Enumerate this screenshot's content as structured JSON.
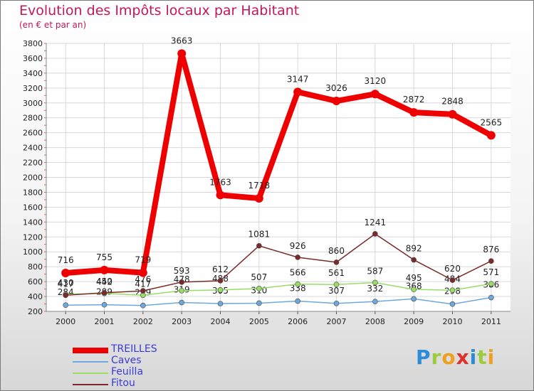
{
  "title": "Evolution des Impôts locaux par Habitant",
  "subtitle": "(en € et par an)",
  "logo_text": "Proxiti",
  "chart_data": {
    "type": "line",
    "title": "Evolution des Impôts locaux par Habitant",
    "subtitle": "(en € et par an)",
    "xlabel": "",
    "ylabel": "",
    "categories": [
      "2000",
      "2001",
      "2002",
      "2003",
      "2004",
      "2005",
      "2006",
      "2007",
      "2008",
      "2009",
      "2010",
      "2011"
    ],
    "ylim": [
      200,
      3800
    ],
    "yticks": [
      200,
      400,
      600,
      800,
      1000,
      1200,
      1400,
      1600,
      1800,
      2000,
      2200,
      2400,
      2600,
      2800,
      3000,
      3200,
      3400,
      3600,
      3800
    ],
    "grid": true,
    "legend_position": "bottom-left",
    "series": [
      {
        "name": "Caves",
        "color": "#6fa8dc",
        "values": [
          284,
          289,
          279,
          319,
          305,
          310,
          338,
          307,
          332,
          368,
          298,
          386
        ]
      },
      {
        "name": "Feuilla",
        "color": "#99dd66",
        "values": [
          430,
          442,
          417,
          478,
          488,
          507,
          566,
          561,
          587,
          495,
          484,
          571
        ]
      },
      {
        "name": "Fitou",
        "color": "#7a2a2a",
        "values": [
          417,
          450,
          476,
          593,
          612,
          1081,
          926,
          860,
          1241,
          892,
          620,
          876
        ]
      },
      {
        "name": "TREILLES",
        "color": "#ee0000",
        "values": [
          716,
          755,
          719,
          3663,
          1763,
          1718,
          3147,
          3026,
          3120,
          2872,
          2848,
          2565
        ]
      }
    ]
  }
}
